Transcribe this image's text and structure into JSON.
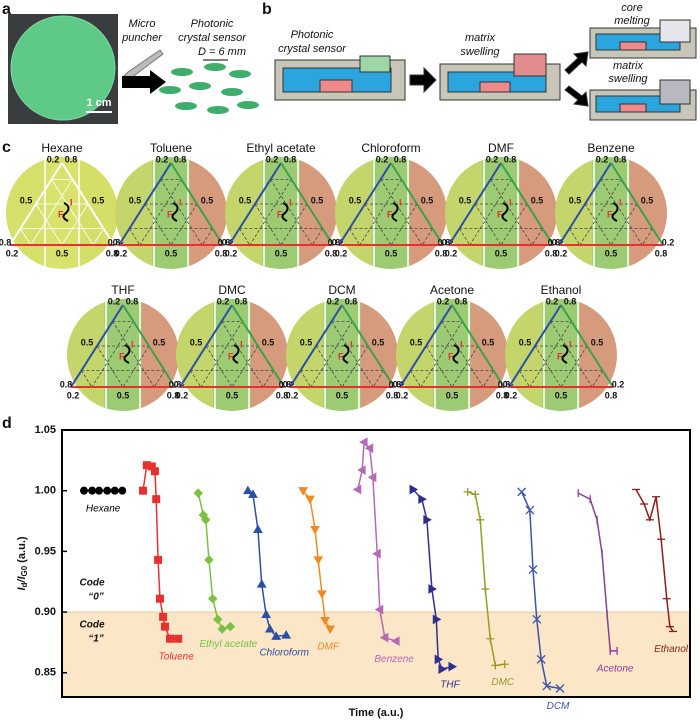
{
  "panel_labels": [
    "a",
    "b",
    "c",
    "d"
  ],
  "panel_a": {
    "tool": [
      "Micro",
      "puncher"
    ],
    "product": [
      "Photonic",
      "crystal sensor"
    ],
    "diameter": "D = 6 mm",
    "scale_bar": "1 cm"
  },
  "panel_b": {
    "sensor": [
      "Photonic",
      "crystal sensor"
    ],
    "step1": [
      "matrix",
      "swelling"
    ],
    "step2a": [
      "core",
      "melting"
    ],
    "step2b": [
      "matrix",
      "swelling"
    ]
  },
  "panel_c": {
    "solvents": [
      "Hexane",
      "Toluene",
      "Ethyl acetate",
      "Chloroform",
      "DMF",
      "Benzene",
      "THF",
      "DMC",
      "DCM",
      "Acetone",
      "Ethanol"
    ],
    "tick_labels": [
      "0.2",
      "0.5",
      "0.8"
    ],
    "markers": [
      "I",
      "F"
    ]
  },
  "chart_data": {
    "type": "line",
    "xlabel": "Time (a.u.)",
    "ylabel": [
      "I",
      "d",
      "/I",
      "G0",
      " (a.u.)"
    ],
    "xlim": [
      0,
      100
    ],
    "ylim": [
      0.83,
      1.05
    ],
    "yticks": [
      0.85,
      {
        "value": 0.9,
        "label": "0.90"
      },
      0.95,
      {
        "value": 1.0,
        "label": "1.00"
      },
      1.05
    ],
    "threshold": 0.9,
    "band_color": "#fbe6c8",
    "annotations": [
      [
        "Code",
        "“0”"
      ],
      [
        "Code",
        "“1”"
      ]
    ],
    "series": [
      {
        "name": "Hexane",
        "color": "#000000",
        "marker": "circle",
        "x": [
          3.5,
          4.8,
          5.9,
          7.2,
          8.4,
          9.6
        ],
        "values": [
          1.0,
          1.0,
          1.0,
          1.0,
          1.0,
          1.0
        ]
      },
      {
        "name": "Toluene",
        "color": "#e8312f",
        "marker": "square",
        "x": [
          12.9,
          13.5,
          14.3,
          14.8,
          15.0,
          15.3,
          15.6,
          16.1,
          16.4,
          17.2,
          18.5
        ],
        "values": [
          1.0,
          1.021,
          1.02,
          1.016,
          0.993,
          0.943,
          0.911,
          0.896,
          0.888,
          0.878,
          0.878
        ]
      },
      {
        "name": "Ethyl acetate",
        "color": "#7ac143",
        "marker": "diamond",
        "x": [
          21.7,
          22.5,
          22.9,
          23.4,
          24.0,
          24.8,
          25.5,
          26.8
        ],
        "values": [
          0.998,
          0.98,
          0.976,
          0.943,
          0.911,
          0.894,
          0.886,
          0.888
        ]
      },
      {
        "name": "Chloroform",
        "color": "#2c4fa3",
        "marker": "tri-up",
        "x": [
          29.6,
          30.4,
          31.2,
          31.8,
          32.5,
          33.1,
          34.1,
          35.7
        ],
        "values": [
          1.0,
          0.997,
          0.968,
          0.923,
          0.898,
          0.886,
          0.88,
          0.881
        ]
      },
      {
        "name": "DMF",
        "color": "#f08a24",
        "marker": "tri-down",
        "x": [
          38.4,
          39.5,
          40.3,
          40.8,
          41.4,
          41.9,
          42.7
        ],
        "values": [
          1.0,
          0.993,
          0.968,
          0.943,
          0.915,
          0.893,
          0.886
        ]
      },
      {
        "name": "Benzene",
        "color": "#b36bb5",
        "marker": "tri-left",
        "x": [
          47.1,
          47.8,
          48.1,
          49.0,
          49.5,
          50.2,
          50.6,
          51.4,
          53.2
        ],
        "values": [
          1.001,
          1.017,
          1.04,
          1.035,
          1.011,
          0.948,
          0.902,
          0.879,
          0.876
        ]
      },
      {
        "name": "THF",
        "color": "#2e2f8f",
        "marker": "tri-right",
        "x": [
          55.9,
          57.3,
          58.1,
          58.9,
          59.6,
          59.9,
          60.5,
          62.1
        ],
        "values": [
          1.001,
          0.993,
          0.976,
          0.919,
          0.894,
          0.861,
          0.853,
          0.855
        ]
      },
      {
        "name": "DMC",
        "color": "#9a9a2a",
        "marker": "plus",
        "x": [
          64.6,
          65.8,
          66.6,
          67.4,
          68.2,
          69.0,
          70.5
        ],
        "values": [
          0.999,
          0.997,
          0.976,
          0.919,
          0.878,
          0.856,
          0.857
        ]
      },
      {
        "name": "DCM",
        "color": "#3a55a8",
        "marker": "cross",
        "x": [
          73.2,
          74.5,
          75.0,
          75.6,
          76.3,
          77.2,
          79.3
        ],
        "values": [
          0.999,
          0.984,
          0.935,
          0.894,
          0.861,
          0.839,
          0.837
        ]
      },
      {
        "name": "Acetone",
        "color": "#8a3f98",
        "marker": "vline",
        "x": [
          82.2,
          84.1,
          85.2,
          86.0,
          86.8,
          87.3,
          88.4
        ],
        "values": [
          0.998,
          0.993,
          0.976,
          0.948,
          0.898,
          0.868,
          0.868
        ]
      },
      {
        "name": "Ethanol",
        "color": "#8b1d1d",
        "marker": "hline",
        "x": [
          91.4,
          92.7,
          93.6,
          94.6,
          95.4,
          96.3,
          96.8,
          97.3
        ],
        "values": [
          1.001,
          0.989,
          0.976,
          0.995,
          0.96,
          0.911,
          0.888,
          0.884
        ]
      }
    ]
  }
}
